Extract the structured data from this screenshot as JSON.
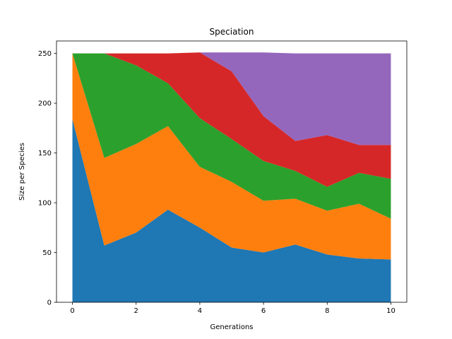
{
  "chart_data": {
    "type": "area",
    "stacked": true,
    "title": "Speciation",
    "xlabel": "Generations",
    "ylabel": "Size per Species",
    "xlim": [
      -0.5,
      10.5
    ],
    "ylim": [
      0,
      262.5
    ],
    "xticks": [
      0,
      2,
      4,
      6,
      8,
      10
    ],
    "yticks": [
      0,
      50,
      100,
      150,
      200,
      250
    ],
    "grid": false,
    "x": [
      0,
      1,
      2,
      3,
      4,
      5,
      6,
      7,
      8,
      9,
      10
    ],
    "series": [
      {
        "color": "#1f77b4",
        "values": [
          184,
          57,
          70,
          93,
          75,
          55,
          50,
          58,
          48,
          44,
          43
        ]
      },
      {
        "color": "#ff7f0e",
        "values": [
          66,
          88,
          89,
          84,
          61,
          66,
          52,
          46,
          44,
          55,
          41
        ]
      },
      {
        "color": "#2ca02c",
        "values": [
          0,
          105,
          79,
          43,
          49,
          43,
          40,
          28,
          24,
          31,
          40
        ]
      },
      {
        "color": "#d62728",
        "values": [
          0,
          0,
          12,
          30,
          66,
          68,
          45,
          30,
          52,
          28,
          34
        ]
      },
      {
        "color": "#9467bd",
        "values": [
          0,
          0,
          0,
          0,
          0,
          19,
          64,
          88,
          82,
          92,
          92
        ]
      }
    ]
  }
}
